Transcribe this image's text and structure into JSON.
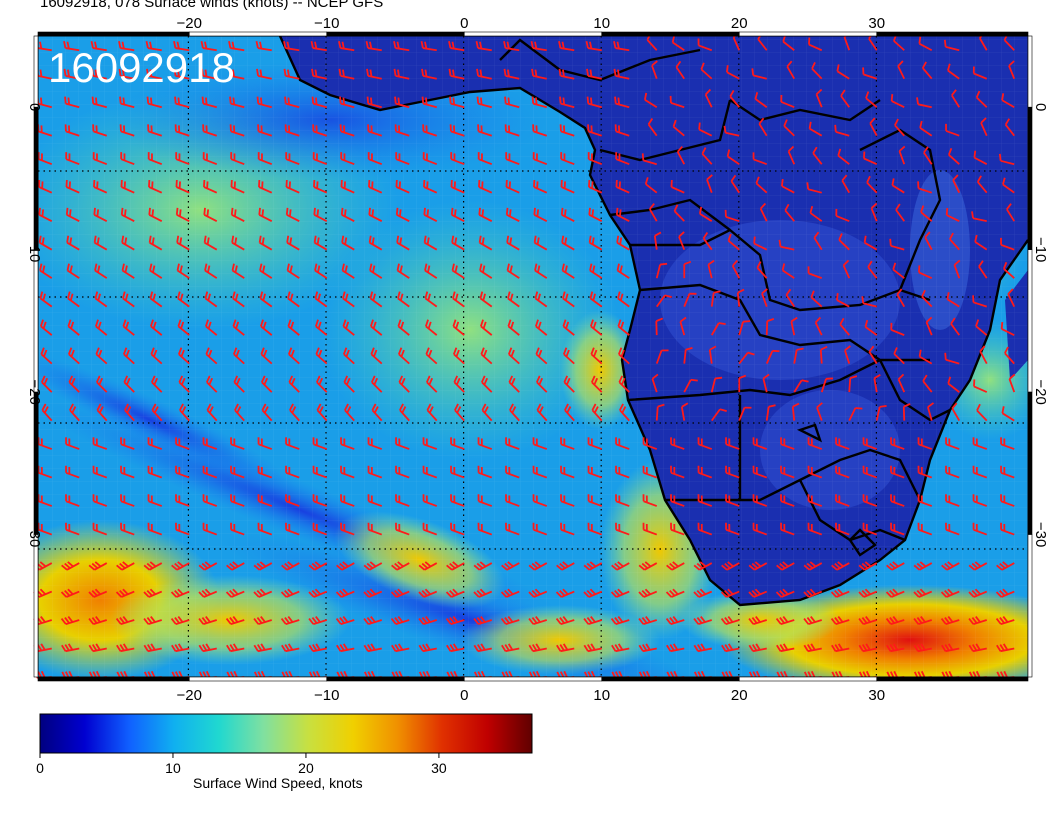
{
  "title": "16092918, 078 Surface winds (knots) -- NCEP GFS",
  "stamp": "16092918",
  "map": {
    "lon_range": [
      -31,
      41
    ],
    "lat_range": [
      5,
      -40
    ],
    "lon_ticks": [
      -20,
      -10,
      0,
      10,
      20,
      30
    ],
    "lat_ticks": [
      0,
      -10,
      -20,
      -30
    ],
    "lon_tick_labels": [
      "−20",
      "−10",
      "0",
      "10",
      "20",
      "30"
    ],
    "lat_tick_labels": [
      "0",
      "−10",
      "−20",
      "−30"
    ],
    "land_color": "#1a2fb0",
    "barb_color": "#ff1a1a",
    "border_color": "#000000"
  },
  "colorbar": {
    "range": [
      0,
      37
    ],
    "tick_values": [
      0,
      10,
      20,
      30
    ],
    "tick_labels": [
      "0",
      "10",
      "20",
      "30"
    ],
    "label": "Surface Wind Speed, knots",
    "colors": [
      "#000080",
      "#0000d0",
      "#1060ff",
      "#10b0f0",
      "#20d8d0",
      "#80e0a0",
      "#c8e040",
      "#f0d000",
      "#f09000",
      "#e03000",
      "#c00000",
      "#600000"
    ]
  }
}
